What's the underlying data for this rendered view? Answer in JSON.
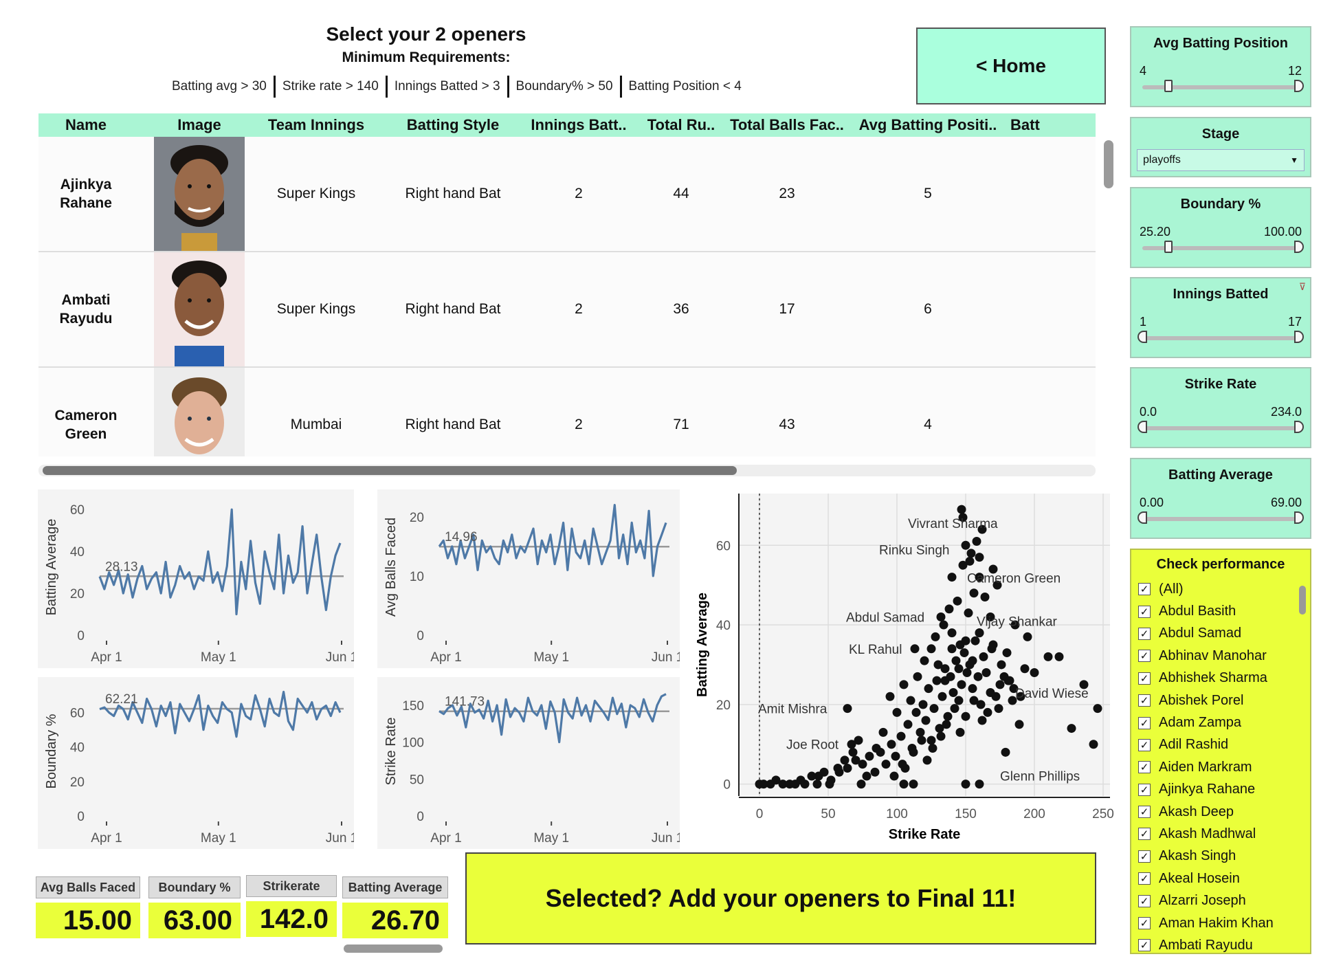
{
  "header": {
    "title": "Select your 2 openers",
    "subtitle": "Minimum Requirements:",
    "requirements": [
      "Batting avg > 30",
      "Strike rate > 140",
      "Innings Batted > 3",
      "Boundary% > 50",
      "Batting Position < 4"
    ]
  },
  "home_button": "< Home",
  "table": {
    "columns": [
      "Name",
      "Image",
      "Team Innings",
      "Batting Style",
      "Innings Batt..",
      "Total Ru..",
      "Total Balls Fac..",
      "Avg Batting Positi..",
      "Batt"
    ],
    "rows": [
      {
        "name": "Ajinkya Rahane",
        "team": "Super Kings",
        "style": "Right hand Bat",
        "innings": "2",
        "runs": "44",
        "balls": "23",
        "position": "5"
      },
      {
        "name": "Ambati Rayudu",
        "team": "Super Kings",
        "style": "Right hand Bat",
        "innings": "2",
        "runs": "36",
        "balls": "17",
        "position": "6"
      },
      {
        "name": "Cameron Green",
        "team": "Mumbai",
        "style": "Right hand Bat",
        "innings": "2",
        "runs": "71",
        "balls": "43",
        "position": "4"
      }
    ]
  },
  "filters": {
    "avg_batting_position": {
      "title": "Avg Batting Position",
      "min": "4",
      "max": "12",
      "low": 0.17,
      "high": 1.0
    },
    "stage": {
      "title": "Stage",
      "value": "playoffs"
    },
    "boundary": {
      "title": "Boundary %",
      "min": "25.20",
      "max": "100.00",
      "low": 0.17,
      "high": 1.0
    },
    "innings_batted": {
      "title": "Innings Batted",
      "min": "1",
      "max": "17",
      "low": 0.0,
      "high": 1.0
    },
    "strike_rate": {
      "title": "Strike Rate",
      "min": "0.0",
      "max": "234.0",
      "low": 0.0,
      "high": 1.0
    },
    "batting_average": {
      "title": "Batting Average",
      "min": "0.00",
      "max": "69.00",
      "low": 0.0,
      "high": 1.0
    }
  },
  "check_performance": {
    "title": "Check performance",
    "items": [
      "(All)",
      "Abdul Basith",
      "Abdul Samad",
      "Abhinav Manohar",
      "Abhishek Sharma",
      "Abishek Porel",
      "Adam Zampa",
      "Adil Rashid",
      "Aiden Markram",
      "Ajinkya Rahane",
      "Akash Deep",
      "Akash Madhwal",
      "Akash Singh",
      "Akeal Hosein",
      "Alzarri Joseph",
      "Aman Hakim Khan",
      "Ambati Rayudu"
    ]
  },
  "kpis": [
    {
      "label": "Avg Balls Faced",
      "value": "15.00"
    },
    {
      "label": "Boundary %",
      "value": "63.00"
    },
    {
      "label": "Strikerate",
      "value": "142.0"
    },
    {
      "label": "Batting Average",
      "value": "26.70"
    }
  ],
  "cta_button": "Selected? Add your openers to Final 11!",
  "chart_data": [
    {
      "type": "line",
      "ylabel": "Batting Average",
      "yticks": [
        0,
        20,
        40,
        60
      ],
      "ylim": [
        0,
        65
      ],
      "xticks": [
        "Apr 1",
        "May 1",
        "Jun 1"
      ],
      "reference_line": 28.13,
      "reference_label": "28.13",
      "values": [
        28,
        22,
        30,
        24,
        31,
        20,
        29,
        18,
        27,
        33,
        22,
        27,
        30,
        20,
        35,
        18,
        24,
        33,
        27,
        30,
        22,
        28,
        26,
        40,
        25,
        30,
        21,
        33,
        60,
        10,
        35,
        22,
        45,
        25,
        15,
        40,
        30,
        22,
        48,
        20,
        38,
        25,
        30,
        52,
        20,
        34,
        48,
        28,
        12,
        28,
        38,
        44
      ]
    },
    {
      "type": "line",
      "ylabel": "Avg Balls Faced",
      "yticks": [
        0,
        10,
        20
      ],
      "ylim": [
        0,
        23
      ],
      "xticks": [
        "Apr 1",
        "May 1",
        "Jun 1"
      ],
      "reference_line": 14.96,
      "reference_label": "14.96",
      "values": [
        15,
        16,
        13,
        15,
        12,
        16,
        13,
        15,
        17,
        11,
        16,
        14,
        15,
        13,
        12,
        16,
        14,
        17,
        13,
        15,
        14,
        16,
        18,
        12,
        16,
        14,
        17,
        12,
        15,
        19,
        11,
        18,
        14,
        13,
        16,
        12,
        18,
        15,
        12,
        14,
        16,
        22,
        13,
        17,
        12,
        19,
        14,
        16,
        13,
        21,
        10,
        15,
        17,
        19
      ]
    },
    {
      "type": "line",
      "ylabel": "Boundary %",
      "yticks": [
        0,
        20,
        40,
        60
      ],
      "ylim": [
        0,
        75
      ],
      "xticks": [
        "Apr 1",
        "May 1",
        "Jun 1"
      ],
      "reference_line": 62.21,
      "reference_label": "62.21",
      "values": [
        62,
        63,
        60,
        58,
        64,
        62,
        56,
        66,
        60,
        54,
        68,
        62,
        52,
        64,
        58,
        66,
        48,
        65,
        60,
        55,
        62,
        70,
        50,
        64,
        58,
        54,
        66,
        62,
        60,
        46,
        65,
        58,
        56,
        70,
        62,
        52,
        68,
        60,
        58,
        72,
        55,
        50,
        68,
        64,
        60,
        66,
        56,
        62,
        64,
        58,
        66,
        60
      ]
    },
    {
      "type": "line",
      "ylabel": "Strike Rate",
      "yticks": [
        0,
        50,
        100,
        150
      ],
      "ylim": [
        0,
        175
      ],
      "xticks": [
        "Apr 1",
        "May 1",
        "Jun 1"
      ],
      "reference_line": 141.73,
      "reference_label": "141.73",
      "values": [
        142,
        138,
        146,
        150,
        136,
        148,
        120,
        152,
        140,
        144,
        132,
        156,
        128,
        150,
        110,
        158,
        134,
        146,
        140,
        128,
        160,
        142,
        136,
        150,
        118,
        155,
        140,
        100,
        158,
        140,
        132,
        160,
        136,
        150,
        128,
        156,
        148,
        140,
        130,
        160,
        138,
        152,
        120,
        150,
        146,
        134,
        158,
        140,
        128,
        150,
        162,
        165
      ]
    },
    {
      "type": "scatter",
      "xlabel": "Strike Rate",
      "ylabel": "Batting Average",
      "xlim": [
        -15,
        255
      ],
      "ylim": [
        -3,
        73
      ],
      "xticks": [
        0,
        50,
        100,
        150,
        200,
        250
      ],
      "yticks": [
        0,
        20,
        40,
        60
      ],
      "labels": [
        {
          "name": "Vivrant Sharma",
          "x": 147,
          "y": 69
        },
        {
          "name": "Rinku Singh",
          "x": 150,
          "y": 60
        },
        {
          "name": "Cameron Green",
          "x": 153,
          "y": 56
        },
        {
          "name": "Abdul Samad",
          "x": 132,
          "y": 42
        },
        {
          "name": "Vijay Shankar",
          "x": 160,
          "y": 38
        },
        {
          "name": "KL Rahul",
          "x": 113,
          "y": 34
        },
        {
          "name": "David Wiese",
          "x": 182,
          "y": 26
        },
        {
          "name": "Amit Mishra",
          "x": 64,
          "y": 19
        },
        {
          "name": "Joe Root",
          "x": 67,
          "y": 10
        },
        {
          "name": "Glenn Phillips",
          "x": 179,
          "y": 8
        }
      ],
      "points": [
        [
          0,
          0
        ],
        [
          12,
          1
        ],
        [
          17,
          0
        ],
        [
          22,
          0
        ],
        [
          33,
          0
        ],
        [
          43,
          2
        ],
        [
          51,
          0
        ],
        [
          58,
          3
        ],
        [
          64,
          4
        ],
        [
          70,
          6
        ],
        [
          74,
          0
        ],
        [
          78,
          2
        ],
        [
          84,
          3
        ],
        [
          88,
          8
        ],
        [
          92,
          5
        ],
        [
          96,
          10
        ],
        [
          99,
          7
        ],
        [
          103,
          12
        ],
        [
          106,
          4
        ],
        [
          108,
          15
        ],
        [
          111,
          9
        ],
        [
          114,
          18
        ],
        [
          117,
          13
        ],
        [
          119,
          20
        ],
        [
          121,
          16
        ],
        [
          123,
          24
        ],
        [
          125,
          11
        ],
        [
          127,
          19
        ],
        [
          129,
          26
        ],
        [
          131,
          14
        ],
        [
          133,
          22
        ],
        [
          135,
          29
        ],
        [
          137,
          17
        ],
        [
          139,
          27
        ],
        [
          141,
          23
        ],
        [
          143,
          31
        ],
        [
          145,
          21
        ],
        [
          147,
          25
        ],
        [
          149,
          33
        ],
        [
          151,
          28
        ],
        [
          153,
          30
        ],
        [
          155,
          24
        ],
        [
          157,
          36
        ],
        [
          159,
          27
        ],
        [
          161,
          20
        ],
        [
          163,
          32
        ],
        [
          166,
          18
        ],
        [
          169,
          34
        ],
        [
          172,
          22
        ],
        [
          176,
          30
        ],
        [
          181,
          26
        ],
        [
          186,
          40
        ],
        [
          189,
          15
        ],
        [
          193,
          29
        ],
        [
          218,
          32
        ],
        [
          227,
          14
        ],
        [
          236,
          25
        ],
        [
          243,
          10
        ],
        [
          246,
          19
        ],
        [
          128,
          37
        ],
        [
          134,
          40
        ],
        [
          138,
          44
        ],
        [
          140,
          38
        ],
        [
          144,
          46
        ],
        [
          146,
          35
        ],
        [
          152,
          43
        ],
        [
          156,
          48
        ],
        [
          160,
          52
        ],
        [
          164,
          47
        ],
        [
          168,
          42
        ],
        [
          173,
          50
        ],
        [
          148,
          55
        ],
        [
          154,
          58
        ],
        [
          158,
          61
        ],
        [
          162,
          64
        ],
        [
          140,
          52
        ],
        [
          148,
          67
        ],
        [
          160,
          57
        ],
        [
          170,
          54
        ],
        [
          95,
          22
        ],
        [
          100,
          18
        ],
        [
          105,
          25
        ],
        [
          110,
          21
        ],
        [
          115,
          27
        ],
        [
          120,
          31
        ],
        [
          125,
          34
        ],
        [
          130,
          30
        ],
        [
          135,
          26
        ],
        [
          140,
          34
        ],
        [
          145,
          29
        ],
        [
          150,
          36
        ],
        [
          155,
          31
        ],
        [
          160,
          38
        ],
        [
          165,
          28
        ],
        [
          170,
          35
        ],
        [
          175,
          25
        ],
        [
          180,
          33
        ],
        [
          185,
          24
        ],
        [
          190,
          22
        ],
        [
          195,
          37
        ],
        [
          200,
          28
        ],
        [
          210,
          32
        ],
        [
          90,
          13
        ],
        [
          85,
          9
        ],
        [
          80,
          7
        ],
        [
          75,
          5
        ],
        [
          72,
          11
        ],
        [
          68,
          8
        ],
        [
          62,
          6
        ],
        [
          57,
          4
        ],
        [
          52,
          1
        ],
        [
          47,
          3
        ],
        [
          42,
          0
        ],
        [
          38,
          2
        ],
        [
          30,
          1
        ],
        [
          26,
          0
        ],
        [
          8,
          0
        ],
        [
          3,
          0
        ],
        [
          98,
          2
        ],
        [
          104,
          5
        ],
        [
          112,
          8
        ],
        [
          118,
          11
        ],
        [
          122,
          6
        ],
        [
          126,
          9
        ],
        [
          132,
          12
        ],
        [
          136,
          15
        ],
        [
          142,
          19
        ],
        [
          146,
          13
        ],
        [
          150,
          17
        ],
        [
          156,
          21
        ],
        [
          162,
          16
        ],
        [
          168,
          23
        ],
        [
          174,
          19
        ],
        [
          178,
          27
        ],
        [
          184,
          21
        ],
        [
          150,
          0
        ],
        [
          160,
          0
        ],
        [
          105,
          0
        ],
        [
          112,
          0
        ]
      ]
    }
  ]
}
